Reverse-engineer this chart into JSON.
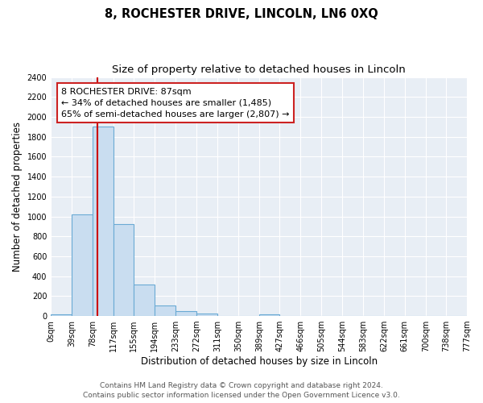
{
  "title": "8, ROCHESTER DRIVE, LINCOLN, LN6 0XQ",
  "subtitle": "Size of property relative to detached houses in Lincoln",
  "xlabel": "Distribution of detached houses by size in Lincoln",
  "ylabel": "Number of detached properties",
  "bar_edges": [
    0,
    39,
    78,
    117,
    155,
    194,
    233,
    272,
    311,
    350,
    389,
    427,
    466,
    505,
    544,
    583,
    622,
    661,
    700,
    738,
    777
  ],
  "bar_heights": [
    20,
    1020,
    1900,
    920,
    320,
    105,
    50,
    25,
    0,
    0,
    20,
    0,
    0,
    0,
    0,
    0,
    0,
    0,
    0,
    0
  ],
  "tick_labels": [
    "0sqm",
    "39sqm",
    "78sqm",
    "117sqm",
    "155sqm",
    "194sqm",
    "233sqm",
    "272sqm",
    "311sqm",
    "350sqm",
    "389sqm",
    "427sqm",
    "466sqm",
    "505sqm",
    "544sqm",
    "583sqm",
    "622sqm",
    "661sqm",
    "700sqm",
    "738sqm",
    "777sqm"
  ],
  "bar_color": "#c9ddf0",
  "bar_edge_color": "#6aaad4",
  "vline_x": 87,
  "vline_color": "#cc0000",
  "ylim": [
    0,
    2400
  ],
  "yticks": [
    0,
    200,
    400,
    600,
    800,
    1000,
    1200,
    1400,
    1600,
    1800,
    2000,
    2200,
    2400
  ],
  "annotation_title": "8 ROCHESTER DRIVE: 87sqm",
  "annotation_line1": "← 34% of detached houses are smaller (1,485)",
  "annotation_line2": "65% of semi-detached houses are larger (2,807) →",
  "footer_line1": "Contains HM Land Registry data © Crown copyright and database right 2024.",
  "footer_line2": "Contains public sector information licensed under the Open Government Licence v3.0.",
  "bg_color": "#ffffff",
  "plot_bg_color": "#e8eef5",
  "grid_color": "#ffffff",
  "title_fontsize": 10.5,
  "subtitle_fontsize": 9.5,
  "axis_label_fontsize": 8.5,
  "tick_fontsize": 7,
  "footer_fontsize": 6.5,
  "annotation_fontsize": 8
}
